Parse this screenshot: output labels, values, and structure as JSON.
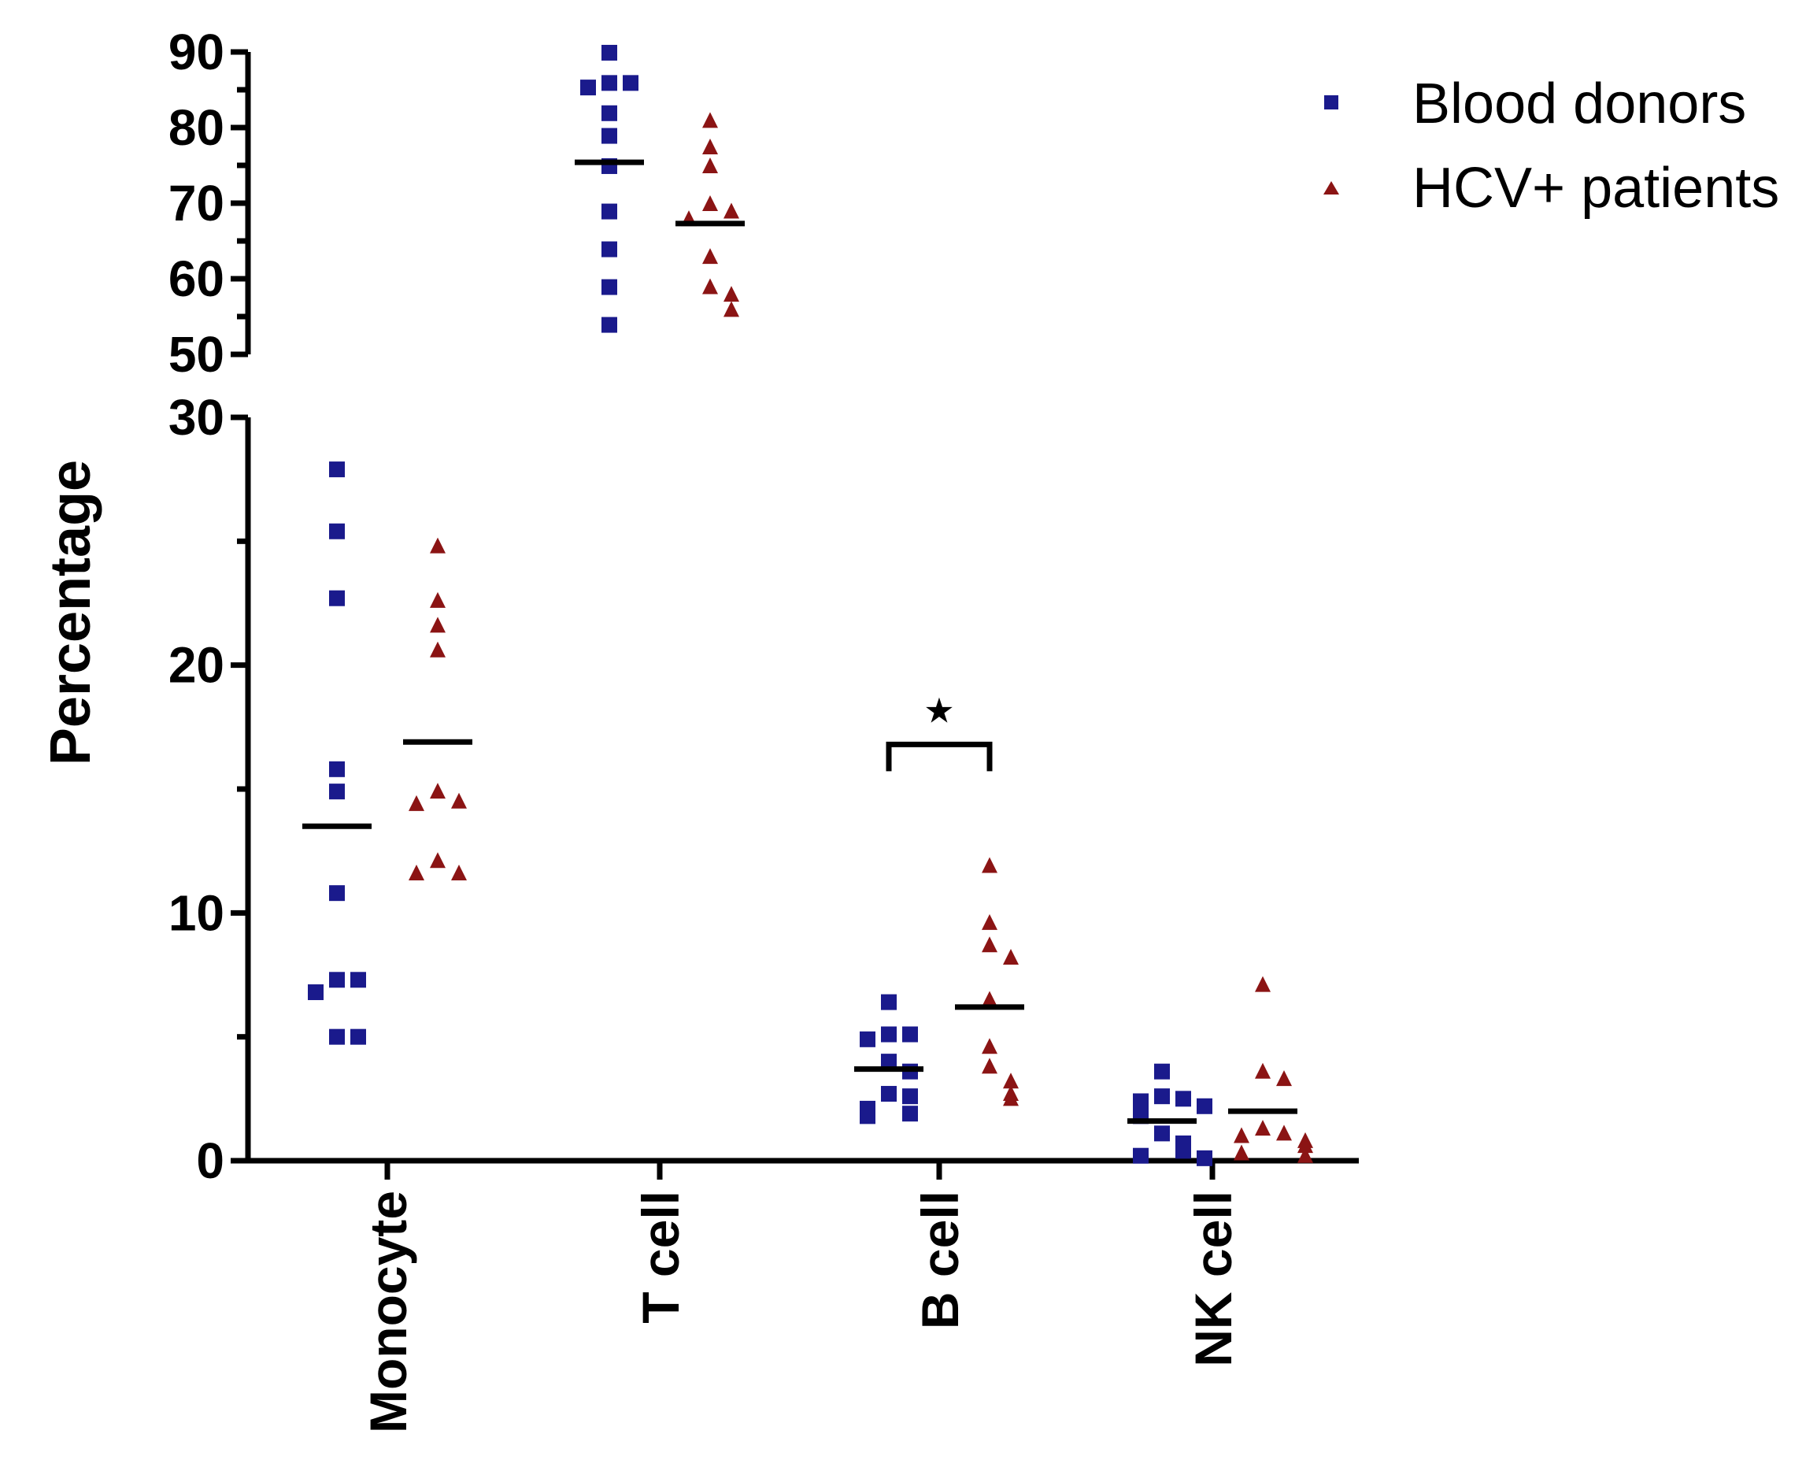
{
  "chart_data": {
    "type": "scatter",
    "subtype": "dot-plot with mean lines, broken y-axis",
    "title": "",
    "xlabel": "",
    "ylabel": "Percentage",
    "categories": [
      "Monocyte",
      "T cell",
      "B cell",
      "NK cell"
    ],
    "y_segments": [
      {
        "name": "lower",
        "ylim": [
          0,
          30
        ],
        "major_ticks": [
          0,
          10,
          20,
          30
        ],
        "minor_step": 5
      },
      {
        "name": "upper",
        "ylim": [
          50,
          90
        ],
        "major_ticks": [
          50,
          60,
          70,
          80,
          90
        ],
        "minor_step": 5
      }
    ],
    "series": [
      {
        "name": "Blood donors",
        "marker": "square",
        "color": "#1a1a8c",
        "values": {
          "Monocyte": [
            27.9,
            25.4,
            22.7,
            15.8,
            14.9,
            10.8,
            7.3,
            7.3,
            6.8,
            5.0,
            5.0
          ],
          "T cell": [
            89.9,
            85.9,
            85.9,
            85.3,
            81.9,
            78.9,
            74.9,
            68.9,
            63.9,
            58.9,
            53.9
          ],
          "B cell": [
            6.4,
            5.1,
            5.1,
            4.9,
            4.0,
            3.6,
            2.7,
            2.6,
            2.1,
            1.9,
            1.8
          ],
          "NK cell": [
            3.6,
            2.6,
            2.5,
            2.4,
            2.2,
            1.8,
            1.1,
            0.7,
            0.4,
            0.2,
            0.1
          ]
        },
        "means": {
          "Monocyte": 13.5,
          "T cell": 75.4,
          "B cell": 3.7,
          "NK cell": 1.6
        }
      },
      {
        "name": "HCV+ patients",
        "marker": "triangle",
        "color": "#8b1414",
        "values": {
          "Monocyte": [
            24.8,
            22.6,
            21.6,
            20.6,
            14.9,
            14.5,
            14.4,
            12.1,
            11.6,
            11.6
          ],
          "T cell": [
            80.9,
            77.4,
            74.9,
            69.9,
            68.9,
            67.9,
            62.9,
            58.9,
            57.9,
            55.9
          ],
          "B cell": [
            11.9,
            9.6,
            8.7,
            8.2,
            6.5,
            4.6,
            3.8,
            3.2,
            2.7,
            2.5
          ],
          "NK cell": [
            7.1,
            3.6,
            3.3,
            1.3,
            1.1,
            1.0,
            0.8,
            0.6,
            0.3,
            0.2
          ]
        },
        "means": {
          "Monocyte": 16.9,
          "T cell": 67.3,
          "B cell": 6.2,
          "NK cell": 2.0
        }
      }
    ],
    "annotations": [
      {
        "type": "significance-bracket",
        "category": "B cell",
        "symbol": "★",
        "y": 16.8
      }
    ],
    "legend": {
      "position": "top-right",
      "entries": [
        "Blood donors",
        "HCV+ patients"
      ]
    },
    "grid": false
  }
}
